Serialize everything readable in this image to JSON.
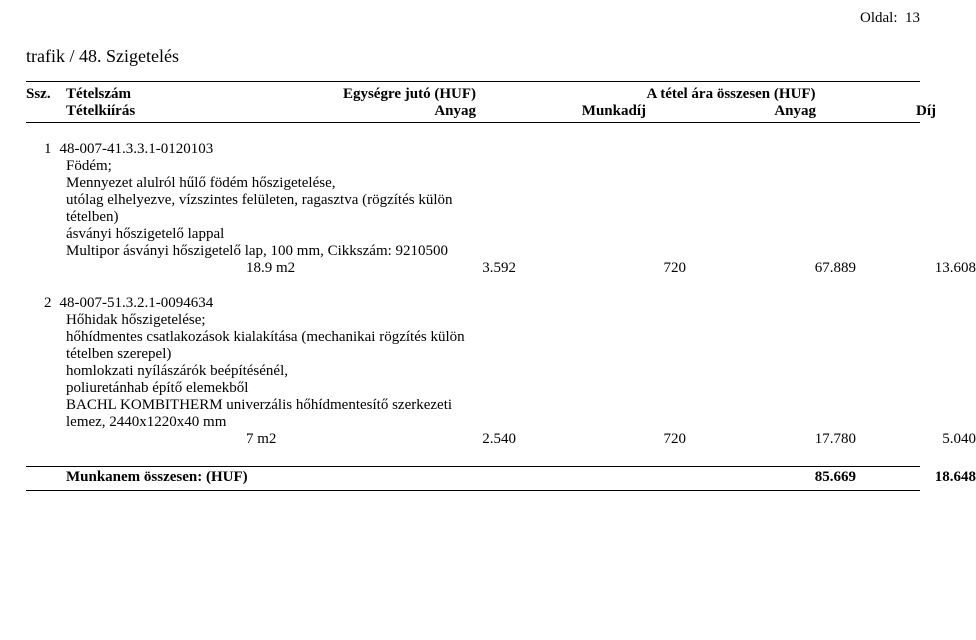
{
  "page_label_prefix": "Oldal:",
  "page_number": "13",
  "breadcrumb": "trafik  /  48. Szigetelés",
  "header": {
    "col_ssz": "Ssz.",
    "col_tetelszam": "Tételszám",
    "col_tetelkiiras": "Tételkiírás",
    "col_egyseg_group": "Egységre jutó (HUF)",
    "col_anyag": "Anyag",
    "col_munkadij": "Munkadíj",
    "col_osszes_group": "A tétel ára összesen (HUF)",
    "col_anyag2": "Anyag",
    "col_dij": "Díj"
  },
  "items": [
    {
      "seq": "1",
      "code": "48-007-41.3.3.1-0120103",
      "lines": [
        "Födém;",
        "Mennyezet alulról hűlő födém hőszigetelése,",
        "utólag elhelyezve, vízszintes felületen, ragasztva (rögzítés külön",
        "tételben)",
        "ásványi hőszigetelő lappal",
        "Multipor ásványi hőszigetelő lap, 100 mm, Cikkszám: 9210500"
      ],
      "qty": "18.9 m2",
      "unit_material": "3.592",
      "unit_labor": "720",
      "total_material": "67.889",
      "total_labor": "13.608"
    },
    {
      "seq": "2",
      "code": "48-007-51.3.2.1-0094634",
      "lines": [
        "Hőhidak hőszigetelése;",
        "hőhídmentes csatlakozások kialakítása (mechanikai rögzítés külön",
        "tételben szerepel)",
        "homlokzati nyílászárók beépítésénél,",
        "poliuretánhab építő elemekből",
        "BACHL KOMBITHERM univerzális hőhídmentesítő szerkezeti",
        "lemez, 2440x1220x40 mm"
      ],
      "qty": "7 m2",
      "unit_material": "2.540",
      "unit_labor": "720",
      "total_material": "17.780",
      "total_labor": "5.040"
    }
  ],
  "totals": {
    "label": "Munkanem összesen: (HUF)",
    "material": "85.669",
    "labor": "18.648"
  },
  "colors": {
    "text": "#000000",
    "background": "#ffffff",
    "rule": "#000000"
  },
  "typography": {
    "family": "Times New Roman",
    "body_pt": 15,
    "breadcrumb_pt": 18,
    "bold_weight": 700
  }
}
